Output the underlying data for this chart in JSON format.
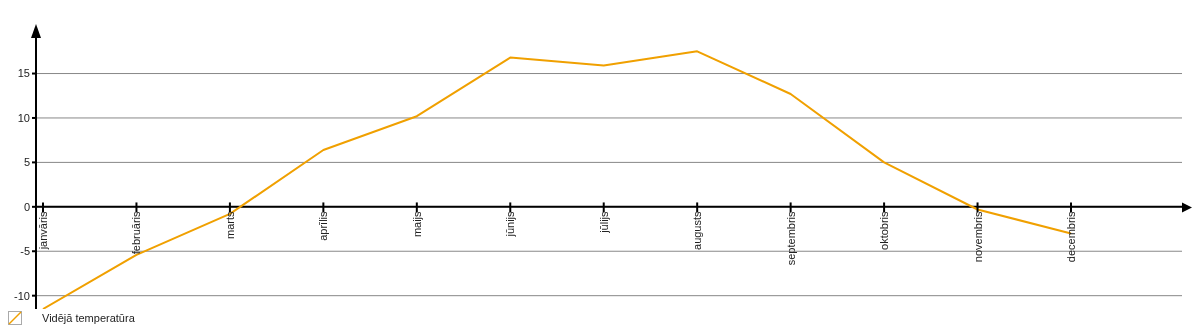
{
  "chart_data": {
    "type": "line",
    "categories": [
      "janvāris",
      "februāris",
      "marts",
      "aprīlis",
      "maijs",
      "jūnijs",
      "jūlijs",
      "augusts",
      "septembris",
      "oktobris",
      "novembris",
      "decembris"
    ],
    "series": [
      {
        "name": "Vidējā temperatūra",
        "color": "#f0a000",
        "values": [
          -11.5,
          -5.4,
          -0.8,
          6.4,
          10.2,
          16.8,
          15.9,
          17.5,
          12.7,
          5.0,
          -0.3,
          -3.0
        ]
      }
    ],
    "ylim": [
      -11.5,
      19
    ],
    "yticks": [
      -10,
      -5,
      0,
      5,
      10,
      15
    ],
    "grid": "y",
    "legend": "bottom left",
    "marker": "none",
    "line_style": "solid"
  }
}
